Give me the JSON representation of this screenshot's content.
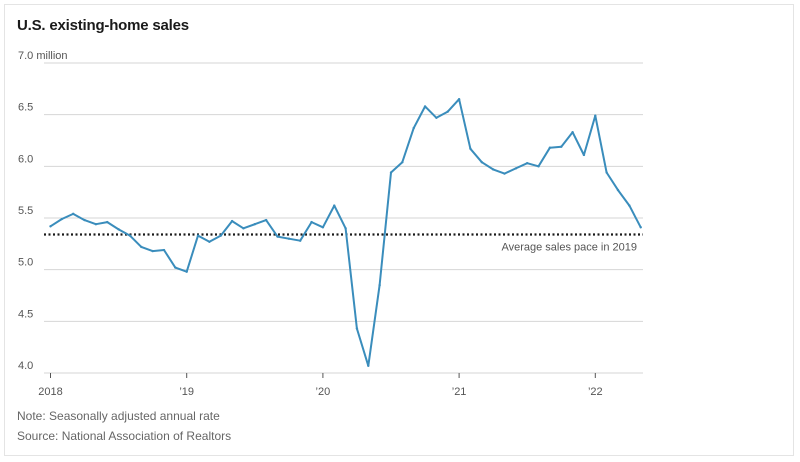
{
  "chart_data": {
    "type": "line",
    "title": "U.S. existing-home sales",
    "y_unit_label": "7.0 million",
    "ylim": [
      4.0,
      7.0
    ],
    "y_ticks": [
      "7.0 million",
      "6.5",
      "6.0",
      "5.5",
      "5.0",
      "4.5",
      "4.0"
    ],
    "y_tick_values": [
      7.0,
      6.5,
      6.0,
      5.5,
      5.0,
      4.5,
      4.0
    ],
    "x_ticks": [
      "2018",
      "’19",
      "’20",
      "’21",
      "’22"
    ],
    "x_tick_values": [
      "2018-01",
      "2019-01",
      "2020-01",
      "2021-01",
      "2022-01"
    ],
    "grid": "horizontal",
    "series": [
      {
        "x": [
          "2018-01",
          "2018-02",
          "2018-03",
          "2018-04",
          "2018-05",
          "2018-06",
          "2018-07",
          "2018-08",
          "2018-09",
          "2018-10",
          "2018-11",
          "2018-12",
          "2019-01",
          "2019-02",
          "2019-03",
          "2019-04",
          "2019-05",
          "2019-06",
          "2019-07",
          "2019-08",
          "2019-09",
          "2019-10",
          "2019-11",
          "2019-12",
          "2020-01",
          "2020-02",
          "2020-03",
          "2020-04",
          "2020-05",
          "2020-06",
          "2020-07",
          "2020-08",
          "2020-09",
          "2020-10",
          "2020-11",
          "2020-12",
          "2021-01",
          "2021-02",
          "2021-03",
          "2021-04",
          "2021-05",
          "2021-06",
          "2021-07",
          "2021-08",
          "2021-09",
          "2021-10",
          "2021-11",
          "2021-12",
          "2022-01",
          "2022-02",
          "2022-03",
          "2022-04",
          "2022-05"
        ],
        "values": [
          5.42,
          5.49,
          5.54,
          5.48,
          5.44,
          5.46,
          5.39,
          5.33,
          5.22,
          5.18,
          5.19,
          5.02,
          4.98,
          5.33,
          5.27,
          5.33,
          5.47,
          5.4,
          5.44,
          5.48,
          5.32,
          5.3,
          5.28,
          5.46,
          5.41,
          5.62,
          5.4,
          4.43,
          4.07,
          4.85,
          5.94,
          6.04,
          6.37,
          6.58,
          6.47,
          6.53,
          6.65,
          6.17,
          6.04,
          5.97,
          5.93,
          5.98,
          6.03,
          6.0,
          6.18,
          6.19,
          6.33,
          6.11,
          6.49,
          5.94,
          5.77,
          5.62,
          5.41
        ],
        "color": "#3a8dbc"
      }
    ],
    "reference_line": {
      "value": 5.34,
      "label": "Average sales pace in 2019",
      "style": "dotted"
    }
  },
  "footer": {
    "note": "Note: Seasonally adjusted annual rate",
    "source": "Source: National Association of Realtors"
  }
}
